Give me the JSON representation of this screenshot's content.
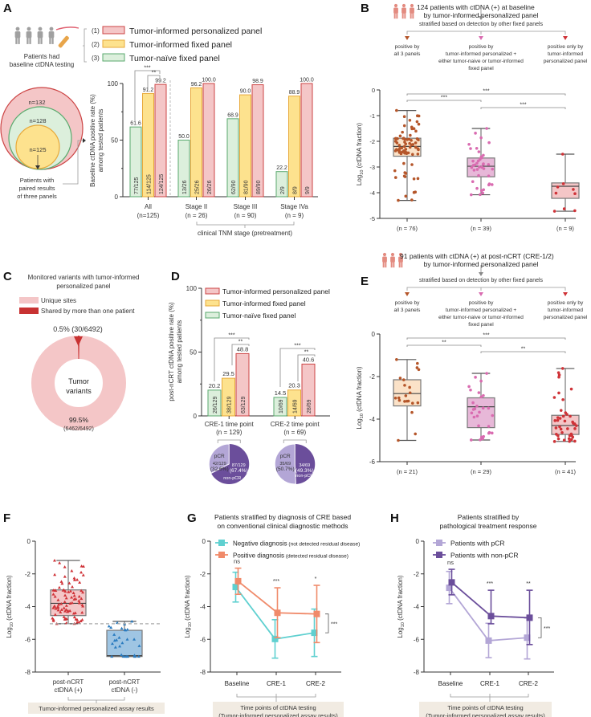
{
  "panels": {
    "A": {
      "label": "A",
      "intro": "Patients had baseline ctDNA testing",
      "intro_lines": [
        "Patients had",
        "baseline ctDNA testing"
      ],
      "legend": [
        {
          "num": "(1)",
          "label": "Tumor-informed personalized panel",
          "fill": "#f4c6c7",
          "stroke": "#cc4444"
        },
        {
          "num": "(2)",
          "label": "Tumor-informed fixed panel",
          "fill": "#fde28e",
          "stroke": "#e8a93a"
        },
        {
          "num": "(3)",
          "label": "Tumor-naïve fixed panel",
          "fill": "#dcefdc",
          "stroke": "#5aaa6e"
        }
      ],
      "venn": {
        "outer": "n=132",
        "middle": "n=128",
        "inner": "n=125",
        "note_lines": [
          "Patients with",
          "paired results",
          "of three panels"
        ]
      },
      "xnote": "clinical TNM stage (pretreatment)"
    },
    "B": {
      "label": "B",
      "header_lines": [
        "124 patients with ctDNA (+) at baseline",
        "by tumor-informed personalized panel"
      ],
      "strat": "stratified based on detection by other fixed panels",
      "groups_text": [
        [
          "positive by",
          "all 3 panels"
        ],
        [
          "positive by",
          "tumor-informed personalized +",
          "either tumor-naive or tumor-informed",
          "fixed panel"
        ],
        [
          "positive only by",
          "tumor-informed",
          "personalized panel"
        ]
      ]
    },
    "C": {
      "label": "C",
      "title_lines": [
        "Monitored variants with tumor-informed",
        "personalized panel"
      ],
      "legend": [
        {
          "label": "Unique sites",
          "color": "#f4c6c7"
        },
        {
          "label": "Shared by more than one patient",
          "color": "#c83232"
        }
      ],
      "center_lines": [
        "Tumor",
        "variants"
      ],
      "top_label": "0.5% (30/6492)",
      "bottom_pct": "99.5%",
      "bottom_frac": "(6462/6492)"
    },
    "D": {
      "label": "D",
      "legend": [
        {
          "label": "Tumor-informed personalized panel",
          "fill": "#f4c6c7",
          "stroke": "#cc4444"
        },
        {
          "label": "Tumor-informed fixed panel",
          "fill": "#fde28e",
          "stroke": "#e8a93a"
        },
        {
          "label": "Tumor-naïve fixed panel",
          "fill": "#dcefdc",
          "stroke": "#5aaa6e"
        }
      ],
      "pies": [
        {
          "pcr_label": "pCR",
          "pcr_frac": "42/129",
          "pcr_pct": "(32.6%)",
          "non_frac": "87/129",
          "non_pct": "(67.4%)",
          "non_label": "non-pCR",
          "pcr_value": 32.6
        },
        {
          "pcr_label": "pCR",
          "pcr_frac": "35/69",
          "pcr_pct": "(50.7%)",
          "non_frac": "34/69",
          "non_pct": "(49.3%)",
          "non_label": "non-pCR",
          "pcr_value": 50.7
        }
      ]
    },
    "E": {
      "label": "E",
      "header_lines": [
        "91 patients with ctDNA (+) at post-nCRT (CRE-1/2)",
        "by tumor-informed personalized panel"
      ],
      "strat": "stratified based on detection by other fixed panels",
      "groups_text": [
        [
          "positive by",
          "all 3 panels"
        ],
        [
          "positive by",
          "tumor-informed personalized +",
          "either tumor-naive or tumor-informed",
          "fixed panel"
        ],
        [
          "positive only by",
          "tumor-informed",
          "personalized panel"
        ]
      ]
    },
    "F": {
      "label": "F",
      "footer": "Tumor-informed personalized assay results"
    },
    "G": {
      "label": "G",
      "title_lines": [
        "Patients stratified by diagnosis of CRE based",
        "on conventional clinical diagnostic methods"
      ],
      "footer_lines": [
        "Time points of ctDNA testing",
        "(Tumor-informed personalized assay results)"
      ]
    },
    "H": {
      "label": "H",
      "title_lines": [
        "Patients stratified by",
        "pathological treatment response"
      ],
      "footer_lines": [
        "Time points of ctDNA testing",
        "(Tumor-informed personalized assay results)"
      ]
    }
  },
  "colors": {
    "red": "#cc4444",
    "pink_fill": "#f4c6c7",
    "yellow_fill": "#fde28e",
    "yellow_stroke": "#e8a93a",
    "green_fill": "#dcefdc",
    "green_stroke": "#5aaa6e",
    "brown": "#b5562a",
    "magenta": "#d96bb0",
    "crimson": "#cf3237",
    "cyan": "#5fd0d0",
    "salmon": "#f08a6a",
    "lavender": "#b3a6d6",
    "purple": "#6b4e9b",
    "blue": "#2a7bbf"
  },
  "chart_data": [
    {
      "id": "A",
      "type": "bar",
      "title": "",
      "ylabel": "Baseline ctDNA positive rate (%) among tested patients",
      "ylim": [
        0,
        100
      ],
      "yticks": [
        0,
        50,
        100
      ],
      "categories": [
        "All\n(n=125)",
        "Stage II\n(n = 26)",
        "Stage III\n(n = 90)",
        "Stage IVa\n(n = 9)"
      ],
      "category_lines": [
        [
          "All",
          "(n=125)"
        ],
        [
          "Stage II",
          "(n = 26)"
        ],
        [
          "Stage III",
          "(n = 90)"
        ],
        [
          "Stage IVa",
          "(n = 9)"
        ]
      ],
      "series": [
        {
          "name": "Tumor-naïve fixed panel",
          "values": [
            61.6,
            50.0,
            68.9,
            22.2
          ],
          "fractions": [
            "77/125",
            "13/26",
            "62/90",
            "2/9"
          ]
        },
        {
          "name": "Tumor-informed fixed panel",
          "values": [
            91.2,
            96.2,
            90.0,
            88.9
          ],
          "fractions": [
            "114/125",
            "25/26",
            "81/90",
            "8/9"
          ]
        },
        {
          "name": "Tumor-informed personalized panel",
          "values": [
            99.2,
            100.0,
            98.9,
            100.0
          ],
          "fractions": [
            "124/125",
            "26/26",
            "89/90",
            "9/9"
          ]
        }
      ],
      "value_labels": [
        [
          "61.6",
          "91.2",
          "99.2"
        ],
        [
          "50.0",
          "96.2",
          "100.0"
        ],
        [
          "68.9",
          "90.0",
          "98.9"
        ],
        [
          "22.2",
          "88.9",
          "100.0"
        ]
      ],
      "annotations": [
        {
          "between": "naive-personalized (All)",
          "text": "***"
        },
        {
          "between": "fixed-personalized (All)",
          "text": "**"
        }
      ],
      "xnote": "clinical TNM stage (pretreatment)"
    },
    {
      "id": "B",
      "type": "box",
      "ylabel": "Log10 (ctDNA fraction)",
      "ylim": [
        -5,
        0
      ],
      "yticks": [
        0,
        -1,
        -2,
        -3,
        -4,
        -5
      ],
      "categories": [
        "(n = 76)",
        "(n = 39)",
        "(n = 9)"
      ],
      "boxes": [
        {
          "min": -4.3,
          "q1": -2.58,
          "median": -2.2,
          "q3": -1.88,
          "max": -0.8,
          "n": 76
        },
        {
          "min": -4.08,
          "q1": -3.38,
          "median": -2.97,
          "q3": -2.65,
          "max": -1.5,
          "n": 39
        },
        {
          "min": -4.72,
          "q1": -4.22,
          "median": -3.75,
          "q3": -3.62,
          "max": -2.5,
          "n": 9
        }
      ],
      "significance": [
        {
          "pair": [
            1,
            3
          ],
          "text": "***"
        },
        {
          "pair": [
            1,
            2
          ],
          "text": "***"
        },
        {
          "pair": [
            2,
            3
          ],
          "text": "***"
        }
      ]
    },
    {
      "id": "C",
      "type": "pie",
      "title": "Monitored variants with tumor-informed personalized panel",
      "slices": [
        {
          "label": "Unique sites",
          "value": 6462,
          "percent": 99.5
        },
        {
          "label": "Shared by more than one patient",
          "value": 30,
          "percent": 0.5
        }
      ],
      "total": 6492
    },
    {
      "id": "D",
      "type": "bar",
      "ylabel": "post-nCRT ctDNA positive rate (%) among tested patients",
      "ylim": [
        0,
        100
      ],
      "yticks": [
        0,
        50,
        100
      ],
      "categories": [
        "CRE-1 time point\n(n = 129)",
        "CRE-2 time point\n(n = 69)"
      ],
      "category_lines": [
        [
          "CRE-1 time point",
          "(n = 129)"
        ],
        [
          "CRE-2 time point",
          "(n = 69)"
        ]
      ],
      "series": [
        {
          "name": "Tumor-naïve fixed panel",
          "values": [
            20.2,
            14.5
          ],
          "fractions": [
            "26/129",
            "10/69"
          ]
        },
        {
          "name": "Tumor-informed fixed panel",
          "values": [
            29.5,
            20.3
          ],
          "fractions": [
            "38/129",
            "14/69"
          ]
        },
        {
          "name": "Tumor-informed personalized panel",
          "values": [
            48.8,
            40.6
          ],
          "fractions": [
            "63/129",
            "28/69"
          ]
        }
      ],
      "value_labels": [
        [
          "20.2",
          "29.5",
          "48.8"
        ],
        [
          "14.5",
          "20.3",
          "40.6"
        ]
      ],
      "annotations": [
        {
          "text": "***"
        },
        {
          "text": "**"
        }
      ],
      "pies": [
        {
          "name": "CRE-1",
          "pCR": 42,
          "non_pCR": 87,
          "total": 129
        },
        {
          "name": "CRE-2",
          "pCR": 35,
          "non_pCR": 34,
          "total": 69
        }
      ]
    },
    {
      "id": "E",
      "type": "box",
      "ylabel": "Log10 (ctDNA fraction)",
      "ylim": [
        -6,
        0
      ],
      "yticks": [
        0,
        -2,
        -4,
        -6
      ],
      "categories": [
        "(n = 21)",
        "(n = 29)",
        "(n = 41)"
      ],
      "boxes": [
        {
          "min": -5.0,
          "q1": -3.38,
          "median": -2.8,
          "q3": -2.15,
          "max": -1.2,
          "n": 21
        },
        {
          "min": -4.98,
          "q1": -4.4,
          "median": -3.42,
          "q3": -3.0,
          "max": -1.85,
          "n": 29
        },
        {
          "min": -5.05,
          "q1": -4.72,
          "median": -4.3,
          "q3": -3.82,
          "max": -1.62,
          "n": 41
        }
      ],
      "significance": [
        {
          "pair": [
            1,
            3
          ],
          "text": "***"
        },
        {
          "pair": [
            1,
            2
          ],
          "text": "**"
        },
        {
          "pair": [
            2,
            3
          ],
          "text": "**"
        }
      ]
    },
    {
      "id": "F",
      "type": "box",
      "ylabel": "Log10 (ctDNA fraction)",
      "ylim": [
        -8,
        0
      ],
      "yticks": [
        0,
        -2,
        -4,
        -6,
        -8
      ],
      "categories": [
        "post-nCRT ctDNA (+)",
        "post-nCRT ctDNA (-)"
      ],
      "category_lines": [
        [
          "post-nCRT",
          "ctDNA (+)"
        ],
        [
          "post-nCRT",
          "ctDNA (-)"
        ]
      ],
      "boxes": [
        {
          "min": -5.05,
          "q1": -4.55,
          "median": -3.8,
          "q3": -2.98,
          "max": -1.18
        },
        {
          "min": -7.05,
          "q1": -7.05,
          "median": -7.0,
          "q3": -5.45,
          "max": -4.9
        }
      ],
      "threshold": -5.05
    },
    {
      "id": "G",
      "type": "line",
      "ylabel": "Log10 (ctDNA fraction)",
      "ylim": [
        -8,
        0
      ],
      "yticks": [
        0,
        -2,
        -4,
        -6,
        -8
      ],
      "x": [
        "Baseline",
        "CRE-1",
        "CRE-2"
      ],
      "series": [
        {
          "name": "Negative diagnosis",
          "name_note": "(not detected residual disease)",
          "values": [
            -2.8,
            -5.98,
            -5.6
          ],
          "err_low": [
            -3.72,
            -7.15,
            -7.05
          ],
          "err_high": [
            -1.9,
            -4.8,
            -4.15
          ]
        },
        {
          "name": "Positive diagnosis",
          "name_note": "(detected residual disease)",
          "values": [
            -2.45,
            -4.38,
            -4.45
          ],
          "err_low": [
            -3.25,
            -5.9,
            -6.2
          ],
          "err_high": [
            -1.65,
            -2.85,
            -2.7
          ]
        }
      ],
      "significance": [
        "ns",
        "***",
        "*"
      ],
      "overall": "***"
    },
    {
      "id": "H",
      "type": "line",
      "ylabel": "Log10 (ctDNA fraction)",
      "ylim": [
        -8,
        0
      ],
      "yticks": [
        0,
        -2,
        -4,
        -6,
        -8
      ],
      "x": [
        "Baseline",
        "CRE-1",
        "CRE-2"
      ],
      "series": [
        {
          "name": "Patients with pCR",
          "values": [
            -2.85,
            -6.08,
            -5.9
          ],
          "err_low": [
            -3.82,
            -7.12,
            -7.2
          ],
          "err_high": [
            -1.85,
            -5.02,
            -4.7
          ]
        },
        {
          "name": "Patients with non-pCR",
          "values": [
            -2.52,
            -4.58,
            -4.68
          ],
          "err_low": [
            -3.28,
            -5.05,
            -6.32
          ],
          "err_high": [
            -1.72,
            -3.0,
            -3.0
          ]
        }
      ],
      "significance": [
        "ns",
        "***",
        "**"
      ],
      "overall": "***"
    }
  ]
}
